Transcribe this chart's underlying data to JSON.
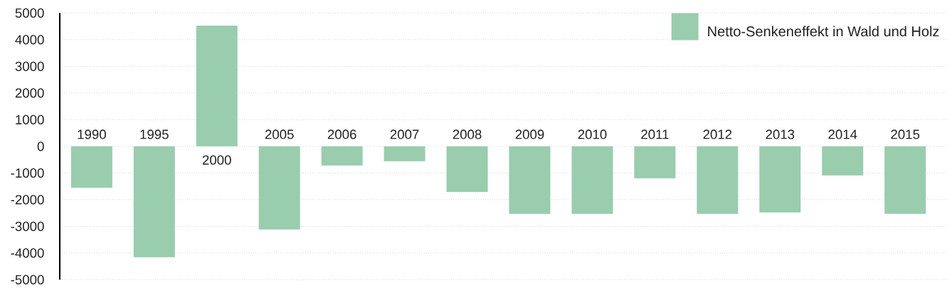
{
  "chart_data": {
    "type": "bar",
    "categories": [
      "1990",
      "1995",
      "2000",
      "2005",
      "2006",
      "2007",
      "2008",
      "2009",
      "2010",
      "2011",
      "2012",
      "2013",
      "2014",
      "2015"
    ],
    "series": [
      {
        "name": "Netto-Senkeneffekt in Wald und Holz",
        "color": "#99cdae",
        "values": [
          -1550,
          -4160,
          4530,
          -3120,
          -720,
          -560,
          -1710,
          -2530,
          -2530,
          -1200,
          -2530,
          -2480,
          -1090,
          -2530
        ]
      }
    ],
    "ylim": [
      -5000,
      5000
    ],
    "yticks": [
      -5000,
      -4000,
      -3000,
      -2000,
      -1000,
      0,
      1000,
      2000,
      3000,
      4000,
      5000
    ],
    "grid": "y",
    "legend": "top right"
  }
}
